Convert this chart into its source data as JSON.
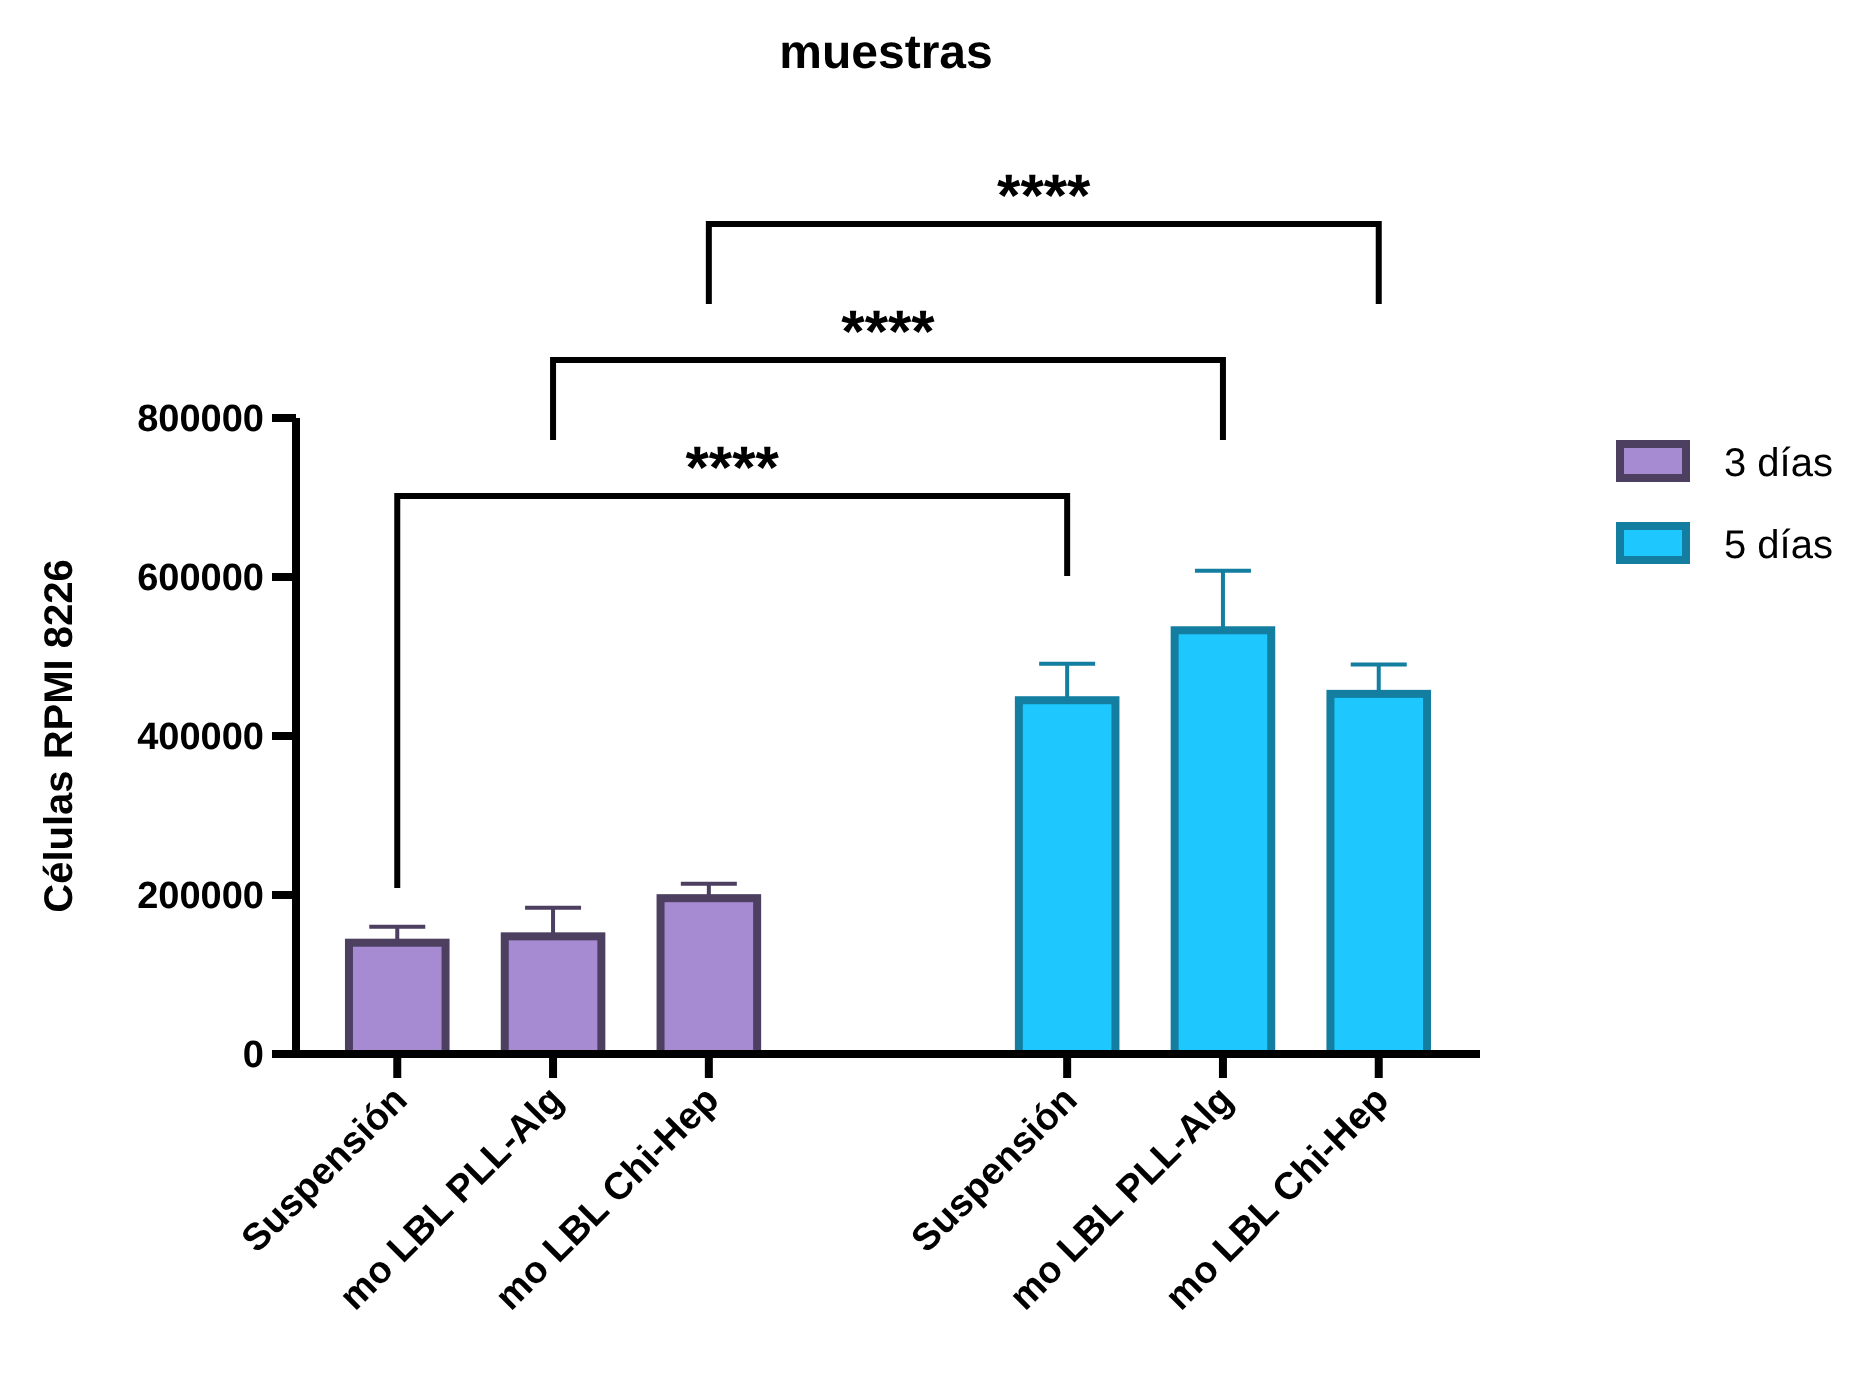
{
  "chart_data": {
    "type": "bar",
    "title": "muestras",
    "ylabel": "Células RPMI 8226",
    "categories": [
      "Suspensión",
      "mo LBL PLL-Alg",
      "mo LBL Chi-Hep",
      "Suspensión",
      "mo LBL PLL-Alg",
      "mo LBL Chi-Hep"
    ],
    "series": [
      {
        "name": "3 días",
        "color": "#a68bd3",
        "values": [
          140000,
          148000,
          196000,
          null,
          null,
          null
        ],
        "errors": [
          [
            140000,
            160000
          ],
          [
            148000,
            184000
          ],
          [
            196000,
            214000
          ],
          null,
          null,
          null
        ]
      },
      {
        "name": "5 días",
        "color": "#1ec8fe",
        "values": [
          null,
          null,
          null,
          445000,
          533000,
          453000
        ],
        "errors": [
          null,
          null,
          null,
          [
            445000,
            491000
          ],
          [
            533000,
            608000
          ],
          [
            453000,
            490000
          ]
        ]
      }
    ],
    "ylim": [
      0,
      800000
    ],
    "yticks": [
      0,
      200000,
      400000,
      600000,
      800000
    ],
    "grid": false,
    "legend": "top right",
    "annotations": [
      "****",
      "****",
      "****"
    ]
  }
}
